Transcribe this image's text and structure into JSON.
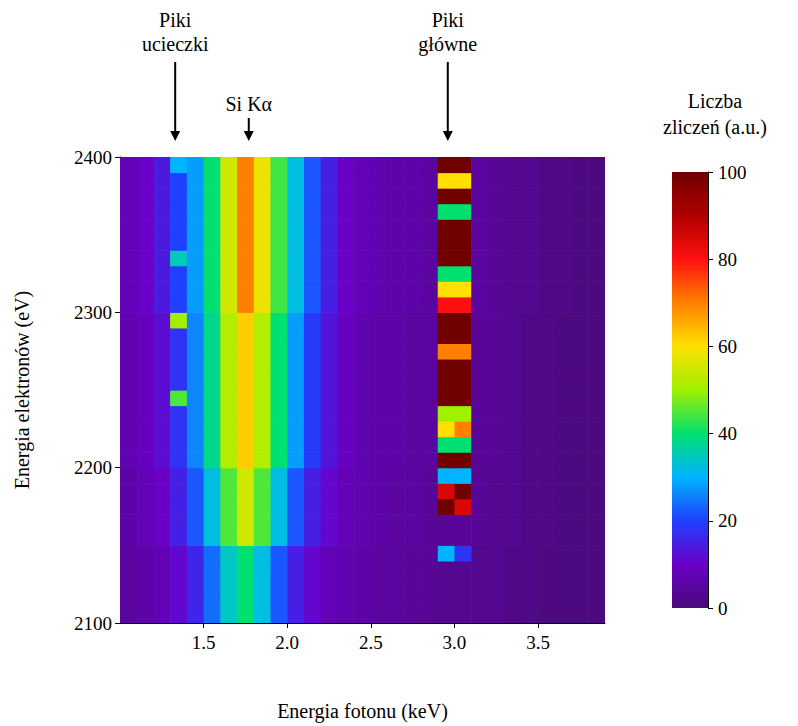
{
  "chart_data": {
    "type": "heatmap",
    "xlabel": "Energia fotonu (keV)",
    "ylabel": "Energia elektronów (eV)",
    "xlim": [
      1.0,
      3.9
    ],
    "xticks": [
      1.5,
      {
        "value": 2,
        "label": "2.0"
      },
      2.5,
      {
        "value": 3,
        "label": "3.0"
      },
      3.5
    ],
    "ylim": [
      2100,
      2400
    ],
    "yticks": [
      2100,
      2200,
      2300,
      2400
    ],
    "grid": false,
    "annotations": [
      {
        "text": "Piki ucieczki",
        "x": 1.33
      },
      {
        "text": "Si Kα",
        "x": 1.77
      },
      {
        "text": "Piki główne",
        "x": 2.96
      }
    ],
    "colorbar": {
      "title": "Liczba zliczeń (a.u.)",
      "range": [
        0,
        100
      ],
      "ticks": [
        0,
        20,
        40,
        60,
        80,
        100
      ]
    },
    "cells": {
      "x": [
        1.05,
        1.15,
        1.25,
        1.35,
        1.45,
        1.55,
        1.65,
        1.75,
        1.85,
        1.95,
        2.05,
        2.15,
        2.25,
        2.35,
        2.45,
        2.55,
        2.65,
        2.75,
        2.85,
        2.95,
        3.05,
        3.15,
        3.25,
        3.35,
        3.45,
        3.55,
        3.65,
        3.75,
        3.85
      ],
      "y": [
        2105,
        2115,
        2125,
        2135,
        2145,
        2155,
        2165,
        2175,
        2185,
        2195,
        2205,
        2215,
        2225,
        2235,
        2245,
        2255,
        2265,
        2275,
        2285,
        2295,
        2305,
        2315,
        2325,
        2335,
        2345,
        2355,
        2365,
        2375,
        2385,
        2395
      ],
      "values": [
        [
          5,
          6,
          8,
          11,
          16,
          24,
          34,
          40,
          32,
          22,
          15,
          11,
          8,
          7,
          6,
          5,
          5,
          4,
          4,
          3,
          3,
          3,
          3,
          2,
          2,
          1,
          1,
          1,
          1
        ],
        [
          5,
          6,
          8,
          11,
          16,
          24,
          34,
          40,
          32,
          22,
          15,
          11,
          8,
          7,
          6,
          5,
          5,
          4,
          4,
          3,
          3,
          3,
          3,
          2,
          2,
          1,
          1,
          1,
          1
        ],
        [
          5,
          6,
          8,
          11,
          16,
          24,
          34,
          40,
          32,
          22,
          15,
          11,
          8,
          7,
          6,
          5,
          5,
          4,
          4,
          3,
          3,
          3,
          3,
          2,
          2,
          1,
          1,
          1,
          1
        ],
        [
          5,
          6,
          8,
          11,
          16,
          24,
          34,
          40,
          32,
          22,
          15,
          11,
          8,
          7,
          6,
          5,
          5,
          4,
          4,
          3,
          3,
          3,
          3,
          2,
          2,
          1,
          1,
          1,
          1
        ],
        [
          5,
          6,
          8,
          11,
          16,
          24,
          34,
          40,
          32,
          22,
          15,
          11,
          8,
          7,
          6,
          5,
          5,
          4,
          4,
          30,
          18,
          3,
          3,
          2,
          2,
          1,
          1,
          1,
          1
        ],
        [
          6,
          8,
          10,
          15,
          22,
          32,
          45,
          55,
          45,
          32,
          22,
          15,
          11,
          8,
          7,
          6,
          5,
          5,
          4,
          4,
          4,
          4,
          3,
          3,
          2,
          2,
          1,
          1,
          1
        ],
        [
          6,
          8,
          10,
          15,
          22,
          32,
          45,
          55,
          45,
          32,
          22,
          15,
          11,
          8,
          7,
          6,
          5,
          5,
          4,
          4,
          4,
          4,
          3,
          3,
          2,
          2,
          1,
          1,
          1
        ],
        [
          6,
          8,
          10,
          15,
          22,
          32,
          45,
          55,
          45,
          32,
          22,
          15,
          11,
          8,
          7,
          6,
          5,
          5,
          4,
          100,
          85,
          4,
          3,
          3,
          2,
          2,
          1,
          1,
          1
        ],
        [
          6,
          8,
          10,
          15,
          22,
          32,
          45,
          55,
          45,
          32,
          22,
          15,
          11,
          8,
          7,
          6,
          5,
          5,
          4,
          85,
          100,
          4,
          3,
          3,
          2,
          2,
          1,
          1,
          1
        ],
        [
          6,
          8,
          10,
          15,
          22,
          32,
          45,
          55,
          45,
          32,
          22,
          15,
          11,
          8,
          7,
          6,
          5,
          5,
          4,
          30,
          30,
          4,
          3,
          3,
          2,
          2,
          1,
          1,
          1
        ],
        [
          7,
          9,
          12,
          18,
          26,
          38,
          52,
          62,
          52,
          40,
          28,
          19,
          13,
          9,
          7,
          6,
          6,
          5,
          5,
          100,
          100,
          4,
          4,
          3,
          2,
          2,
          1,
          1,
          1
        ],
        [
          7,
          9,
          12,
          18,
          26,
          38,
          52,
          62,
          52,
          40,
          28,
          19,
          13,
          9,
          7,
          6,
          6,
          5,
          5,
          40,
          40,
          4,
          4,
          3,
          2,
          2,
          1,
          1,
          1
        ],
        [
          7,
          9,
          12,
          18,
          26,
          38,
          52,
          62,
          52,
          40,
          28,
          19,
          13,
          9,
          7,
          6,
          6,
          5,
          5,
          60,
          70,
          4,
          4,
          3,
          2,
          2,
          1,
          1,
          1
        ],
        [
          7,
          9,
          12,
          18,
          26,
          38,
          52,
          62,
          52,
          40,
          28,
          19,
          13,
          9,
          7,
          6,
          6,
          5,
          5,
          50,
          50,
          4,
          4,
          3,
          2,
          2,
          1,
          1,
          1
        ],
        [
          7,
          9,
          12,
          45,
          26,
          38,
          52,
          62,
          52,
          40,
          28,
          19,
          13,
          9,
          7,
          6,
          6,
          5,
          5,
          100,
          100,
          4,
          4,
          3,
          2,
          2,
          1,
          1,
          1
        ],
        [
          7,
          9,
          12,
          18,
          26,
          38,
          52,
          62,
          52,
          40,
          28,
          19,
          13,
          9,
          7,
          6,
          6,
          5,
          5,
          100,
          100,
          4,
          4,
          3,
          2,
          2,
          1,
          1,
          1
        ],
        [
          7,
          9,
          12,
          18,
          26,
          38,
          52,
          62,
          52,
          40,
          28,
          19,
          13,
          9,
          7,
          6,
          6,
          5,
          5,
          100,
          100,
          4,
          4,
          3,
          2,
          2,
          1,
          1,
          1
        ],
        [
          7,
          9,
          12,
          18,
          26,
          38,
          52,
          62,
          52,
          40,
          28,
          19,
          13,
          9,
          7,
          6,
          6,
          5,
          5,
          70,
          70,
          4,
          4,
          3,
          2,
          2,
          1,
          1,
          1
        ],
        [
          7,
          9,
          12,
          18,
          26,
          38,
          52,
          62,
          52,
          40,
          28,
          19,
          13,
          9,
          7,
          6,
          6,
          5,
          5,
          100,
          100,
          4,
          4,
          3,
          2,
          2,
          1,
          1,
          1
        ],
        [
          7,
          9,
          12,
          50,
          26,
          38,
          52,
          62,
          52,
          40,
          28,
          19,
          13,
          9,
          7,
          6,
          6,
          5,
          5,
          100,
          100,
          4,
          4,
          3,
          2,
          2,
          1,
          1,
          1
        ],
        [
          8,
          10,
          14,
          20,
          28,
          40,
          55,
          70,
          58,
          44,
          32,
          22,
          15,
          10,
          8,
          7,
          6,
          6,
          5,
          80,
          80,
          5,
          4,
          3,
          3,
          2,
          2,
          1,
          1
        ],
        [
          8,
          10,
          14,
          20,
          28,
          40,
          55,
          70,
          58,
          44,
          32,
          22,
          15,
          10,
          8,
          7,
          6,
          6,
          5,
          60,
          60,
          5,
          4,
          3,
          3,
          2,
          2,
          1,
          1
        ],
        [
          8,
          10,
          14,
          20,
          28,
          40,
          55,
          70,
          58,
          44,
          32,
          22,
          15,
          10,
          8,
          7,
          6,
          6,
          5,
          40,
          40,
          5,
          4,
          3,
          3,
          2,
          2,
          1,
          1
        ],
        [
          8,
          10,
          14,
          35,
          28,
          40,
          55,
          70,
          58,
          44,
          32,
          22,
          15,
          10,
          8,
          7,
          6,
          6,
          5,
          100,
          100,
          5,
          4,
          3,
          3,
          2,
          2,
          1,
          1
        ],
        [
          8,
          10,
          14,
          20,
          28,
          40,
          55,
          70,
          58,
          44,
          32,
          22,
          15,
          10,
          8,
          7,
          6,
          6,
          5,
          100,
          100,
          5,
          4,
          3,
          3,
          2,
          2,
          1,
          1
        ],
        [
          8,
          10,
          14,
          20,
          28,
          40,
          55,
          70,
          58,
          44,
          32,
          22,
          15,
          10,
          8,
          7,
          6,
          6,
          5,
          100,
          100,
          5,
          4,
          3,
          3,
          2,
          2,
          1,
          1
        ],
        [
          8,
          10,
          14,
          20,
          28,
          40,
          55,
          70,
          58,
          44,
          32,
          22,
          15,
          10,
          8,
          7,
          6,
          6,
          5,
          40,
          40,
          5,
          4,
          3,
          3,
          2,
          2,
          1,
          1
        ],
        [
          8,
          10,
          14,
          20,
          28,
          40,
          55,
          70,
          58,
          44,
          32,
          22,
          15,
          10,
          8,
          7,
          6,
          6,
          5,
          100,
          100,
          5,
          4,
          3,
          3,
          2,
          2,
          1,
          1
        ],
        [
          8,
          10,
          14,
          20,
          28,
          40,
          55,
          70,
          58,
          44,
          32,
          22,
          15,
          10,
          8,
          7,
          6,
          6,
          5,
          60,
          60,
          5,
          4,
          3,
          3,
          2,
          2,
          1,
          1
        ],
        [
          8,
          10,
          14,
          30,
          28,
          40,
          55,
          70,
          58,
          44,
          32,
          22,
          15,
          10,
          8,
          7,
          6,
          6,
          5,
          100,
          100,
          5,
          4,
          3,
          3,
          2,
          2,
          1,
          1
        ]
      ]
    }
  }
}
